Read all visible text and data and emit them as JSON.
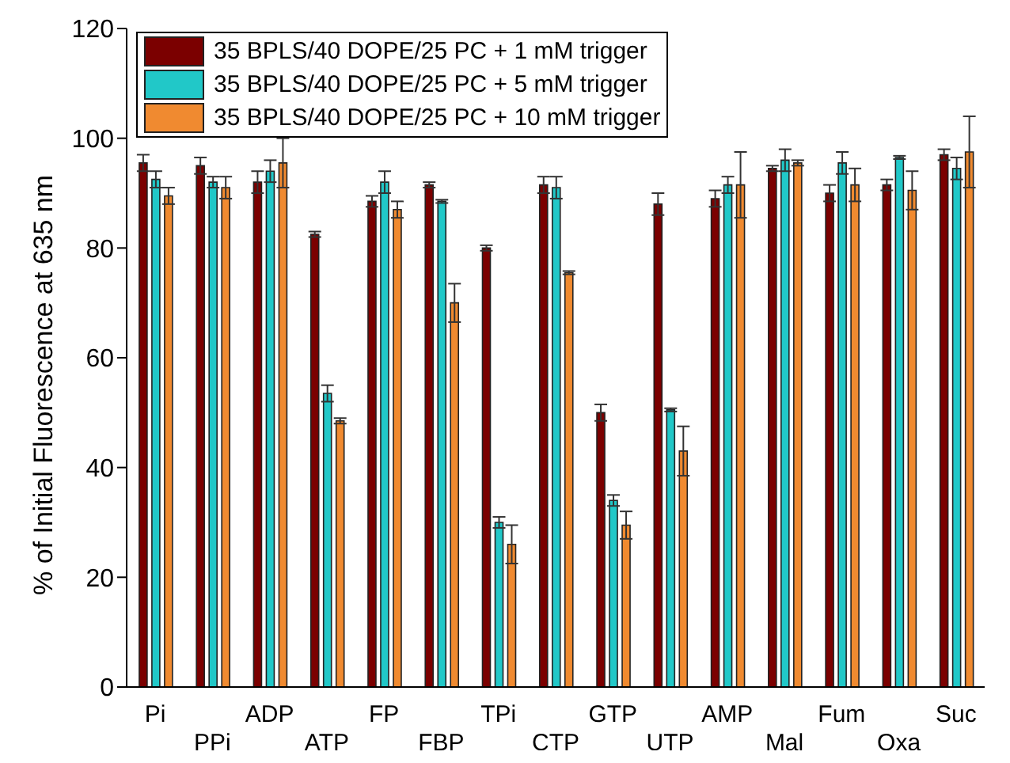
{
  "chart_data": {
    "type": "bar",
    "ylabel": "% of Initial Fluorescence at 635 nm",
    "categories": [
      "Pi",
      "PPi",
      "ADP",
      "ATP",
      "FP",
      "FBP",
      "TPi",
      "CTP",
      "GTP",
      "UTP",
      "AMP",
      "Mal",
      "Fum",
      "Oxa",
      "Suc"
    ],
    "series": [
      {
        "name": "35 BPLS/40 DOPE/25 PC + 1 mM trigger",
        "color": "#7b0000",
        "values": [
          95.5,
          95,
          92,
          82.5,
          88.5,
          91.5,
          80,
          91.5,
          50,
          88,
          89,
          94.5,
          90,
          91.5,
          97
        ],
        "errors": [
          1.5,
          1.5,
          2,
          0.5,
          1,
          0.5,
          0.5,
          1.5,
          1.5,
          2,
          1.5,
          0.5,
          1.5,
          1,
          1
        ]
      },
      {
        "name": "35 BPLS/40 DOPE/25 PC + 5 mM trigger",
        "color": "#21c8c8",
        "values": [
          92.5,
          92,
          94,
          53.5,
          92,
          88.5,
          30,
          91,
          34,
          50.5,
          91.5,
          96,
          95.5,
          96.5,
          94.5
        ],
        "errors": [
          1.5,
          1,
          2,
          1.5,
          2,
          0.3,
          1,
          2,
          1,
          0.3,
          1.5,
          2,
          2,
          0.3,
          2
        ]
      },
      {
        "name": "35 BPLS/40 DOPE/25 PC + 10 mM trigger",
        "color": "#f08a30",
        "values": [
          89.5,
          91,
          95.5,
          48.5,
          87,
          70,
          26,
          75.5,
          29.5,
          43,
          91.5,
          95.5,
          91.5,
          90.5,
          97.5
        ],
        "errors": [
          1.5,
          2,
          4.5,
          0.5,
          1.5,
          3.5,
          3.5,
          0.3,
          2.5,
          4.5,
          6,
          0.5,
          3,
          3.5,
          6.5
        ]
      }
    ],
    "ylim": [
      0,
      120
    ],
    "yticks": [
      0,
      20,
      40,
      60,
      80,
      100,
      120
    ],
    "legend": "top left",
    "grid": false
  }
}
